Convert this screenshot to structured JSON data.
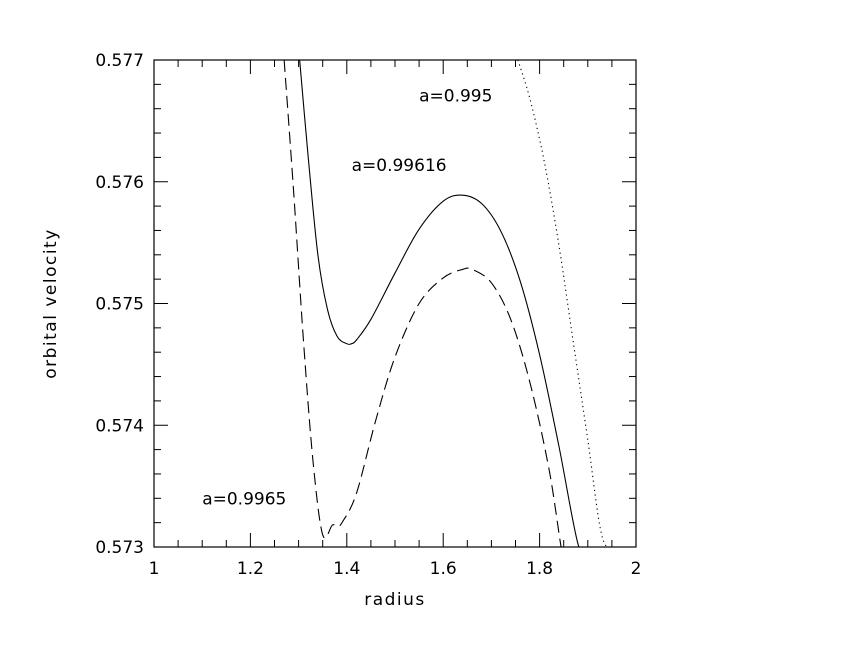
{
  "chart_data": {
    "type": "line",
    "title": "",
    "xlabel": "radius",
    "ylabel": "orbital velocity",
    "xlim": [
      1,
      2
    ],
    "ylim": [
      0.573,
      0.577
    ],
    "grid": false,
    "legend": "none",
    "x_ticks": [
      1,
      1.2,
      1.4,
      1.6,
      1.8,
      2
    ],
    "x_tick_labels": [
      "1",
      "1.2",
      "1.4",
      "1.6",
      "1.8",
      "2"
    ],
    "y_ticks": [
      0.573,
      0.574,
      0.575,
      0.576,
      0.577
    ],
    "y_tick_labels": [
      "0.573",
      "0.574",
      "0.575",
      "0.576",
      "0.577"
    ],
    "series": [
      {
        "style": "solid",
        "x": [
          1.3,
          1.32,
          1.34,
          1.36,
          1.38,
          1.4,
          1.41,
          1.42,
          1.45,
          1.5,
          1.55,
          1.6,
          1.64,
          1.68,
          1.72,
          1.76,
          1.8,
          1.84,
          1.88,
          1.9
        ],
        "y": [
          0.5771,
          0.5762,
          0.5754,
          0.57495,
          0.57473,
          0.57467,
          0.57467,
          0.5747,
          0.57487,
          0.57525,
          0.57561,
          0.57584,
          0.57589,
          0.57582,
          0.57559,
          0.57518,
          0.57458,
          0.57383,
          0.57302,
          0.573
        ]
      },
      {
        "style": "dashed",
        "x": [
          1.27,
          1.29,
          1.31,
          1.33,
          1.35,
          1.37,
          1.38,
          1.39,
          1.42,
          1.46,
          1.5,
          1.55,
          1.6,
          1.64,
          1.66,
          1.7,
          1.74,
          1.78,
          1.82,
          1.86,
          1.89
        ],
        "y": [
          0.577,
          0.5759,
          0.5747,
          0.5737,
          0.5731,
          0.57318,
          0.57317,
          0.5732,
          0.57344,
          0.57404,
          0.57456,
          0.575,
          0.57521,
          0.57528,
          0.57528,
          0.57517,
          0.57487,
          0.57435,
          0.57363,
          0.5727,
          0.573
        ]
      },
      {
        "style": "dotted",
        "x": [
          1.755,
          1.78,
          1.81,
          1.84,
          1.87,
          1.9,
          1.93,
          1.96
        ],
        "y": [
          0.577,
          0.57668,
          0.57616,
          0.57548,
          0.57468,
          0.57388,
          0.57308,
          0.573
        ]
      }
    ],
    "annotations": [
      {
        "text": "a=0.995",
        "x": 1.55,
        "y": 0.57666
      },
      {
        "text": "a=0.99616",
        "x": 1.41,
        "y": 0.57609
      },
      {
        "text": "a=0.9965",
        "x": 1.1,
        "y": 0.57335
      }
    ]
  }
}
